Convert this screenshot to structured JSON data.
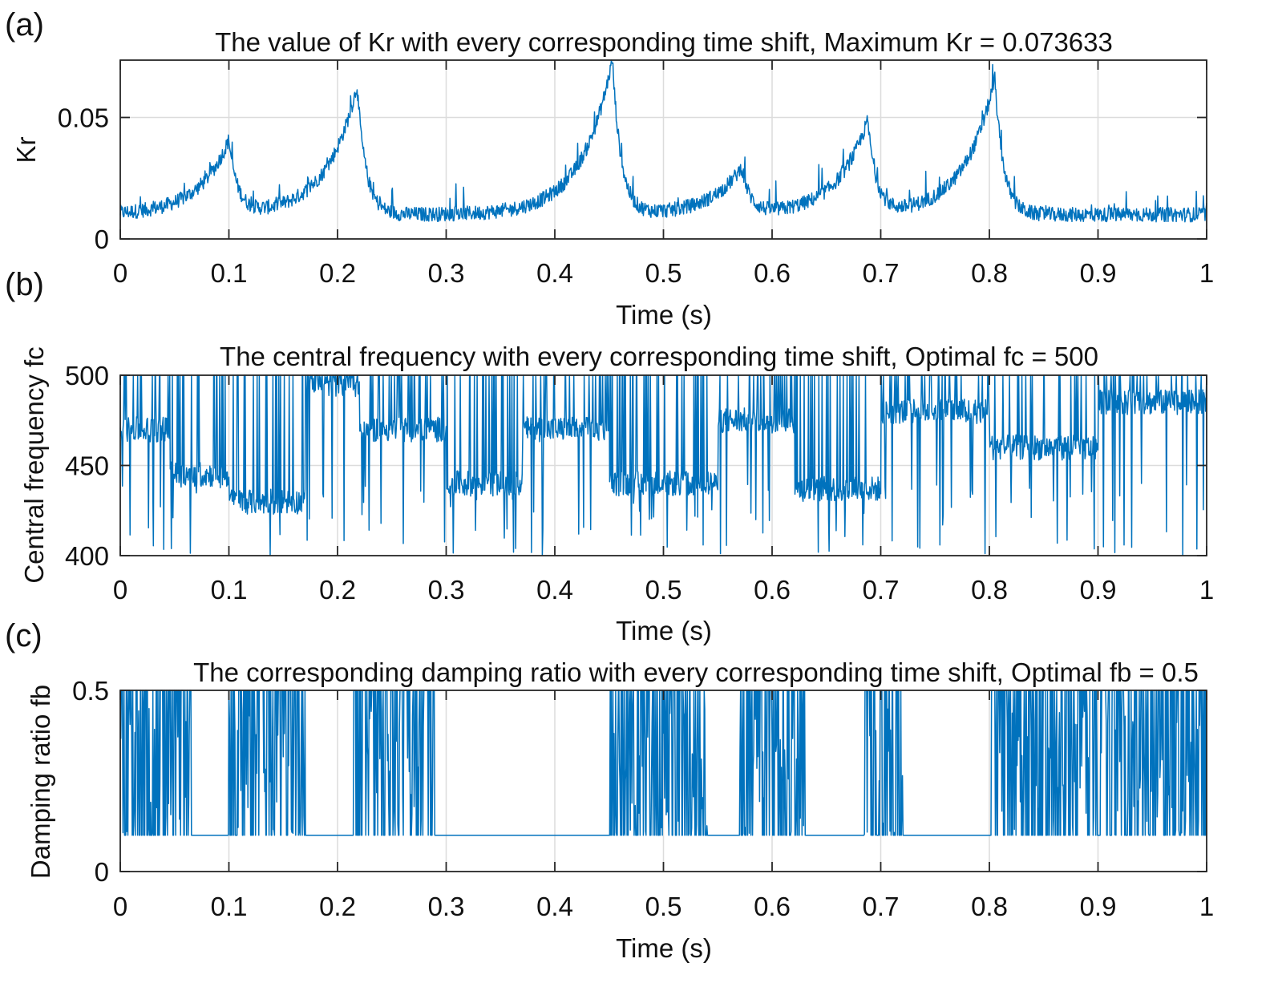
{
  "chart_data": [
    {
      "panel_label": "(a)",
      "type": "line",
      "title": "The value of Kr with every corresponding time shift, Maximum Kr = 0.073633",
      "xlabel": "Time (s)",
      "ylabel": "Kr",
      "xlim": [
        0,
        1
      ],
      "ylim": [
        0,
        0.0736
      ],
      "xticks": [
        0,
        0.1,
        0.2,
        0.3,
        0.4,
        0.5,
        0.6,
        0.7,
        0.8,
        0.9,
        1
      ],
      "xtick_labels": [
        "0",
        "0.1",
        "0.2",
        "0.3",
        "0.4",
        "0.5",
        "0.6",
        "0.7",
        "0.8",
        "0.9",
        "1"
      ],
      "yticks": [
        0,
        0.05
      ],
      "ytick_labels": [
        "0",
        "0.05"
      ],
      "grid": true,
      "color": "#0072bd",
      "peaks": [
        {
          "x": 0.1,
          "y": 0.04
        },
        {
          "x": 0.218,
          "y": 0.063
        },
        {
          "x": 0.453,
          "y": 0.0736
        },
        {
          "x": 0.572,
          "y": 0.029
        },
        {
          "x": 0.688,
          "y": 0.048
        },
        {
          "x": 0.805,
          "y": 0.066
        }
      ],
      "baseline": 0.01,
      "noise": 0.006
    },
    {
      "panel_label": "(b)",
      "type": "line",
      "title": "The central frequency with every corresponding time shift, Optimal fc = 500",
      "xlabel": "Time (s)",
      "ylabel": "Central frequency fc",
      "xlim": [
        0,
        1
      ],
      "ylim": [
        400,
        500
      ],
      "xticks": [
        0,
        0.1,
        0.2,
        0.3,
        0.4,
        0.5,
        0.6,
        0.7,
        0.8,
        0.9,
        1
      ],
      "xtick_labels": [
        "0",
        "0.1",
        "0.2",
        "0.3",
        "0.4",
        "0.5",
        "0.6",
        "0.7",
        "0.8",
        "0.9",
        "1"
      ],
      "yticks": [
        400,
        450,
        500
      ],
      "ytick_labels": [
        "400",
        "450",
        "500"
      ],
      "grid": true,
      "color": "#0072bd",
      "segments": [
        {
          "x0": 0.0,
          "x1": 0.045,
          "level": 470
        },
        {
          "x0": 0.045,
          "x1": 0.1,
          "level": 445
        },
        {
          "x0": 0.1,
          "x1": 0.17,
          "level": 430
        },
        {
          "x0": 0.17,
          "x1": 0.22,
          "level": 495
        },
        {
          "x0": 0.22,
          "x1": 0.3,
          "level": 470
        },
        {
          "x0": 0.3,
          "x1": 0.37,
          "level": 440
        },
        {
          "x0": 0.37,
          "x1": 0.45,
          "level": 470
        },
        {
          "x0": 0.45,
          "x1": 0.55,
          "level": 440
        },
        {
          "x0": 0.55,
          "x1": 0.62,
          "level": 475
        },
        {
          "x0": 0.62,
          "x1": 0.7,
          "level": 437
        },
        {
          "x0": 0.7,
          "x1": 0.8,
          "level": 480
        },
        {
          "x0": 0.8,
          "x1": 0.9,
          "level": 460
        },
        {
          "x0": 0.9,
          "x1": 1.0,
          "level": 485
        }
      ]
    },
    {
      "panel_label": "(c)",
      "type": "line",
      "title": "The corresponding damping ratio with every corresponding time shift, Optimal fb = 0.5",
      "xlabel": "Time (s)",
      "ylabel": "Damping ratio fb",
      "xlim": [
        0,
        1
      ],
      "ylim": [
        0,
        0.5
      ],
      "xticks": [
        0,
        0.1,
        0.2,
        0.3,
        0.4,
        0.5,
        0.6,
        0.7,
        0.8,
        0.9,
        1
      ],
      "xtick_labels": [
        "0",
        "0.1",
        "0.2",
        "0.3",
        "0.4",
        "0.5",
        "0.6",
        "0.7",
        "0.8",
        "0.9",
        "1"
      ],
      "yticks": [
        0,
        0.5
      ],
      "ytick_labels": [
        "0",
        "0.5"
      ],
      "grid": true,
      "color": "#0072bd",
      "low_level": 0.1,
      "high_level": 0.5,
      "active_ranges": [
        [
          0.0,
          0.065
        ],
        [
          0.1,
          0.17
        ],
        [
          0.215,
          0.29
        ],
        [
          0.45,
          0.54
        ],
        [
          0.57,
          0.63
        ],
        [
          0.685,
          0.72
        ],
        [
          0.8,
          1.0
        ]
      ],
      "flat_ranges": [
        [
          0.07,
          0.1
        ],
        [
          0.17,
          0.215
        ],
        [
          0.29,
          0.45
        ],
        [
          0.54,
          0.57
        ],
        [
          0.63,
          0.685
        ],
        [
          0.72,
          0.8
        ]
      ]
    }
  ]
}
